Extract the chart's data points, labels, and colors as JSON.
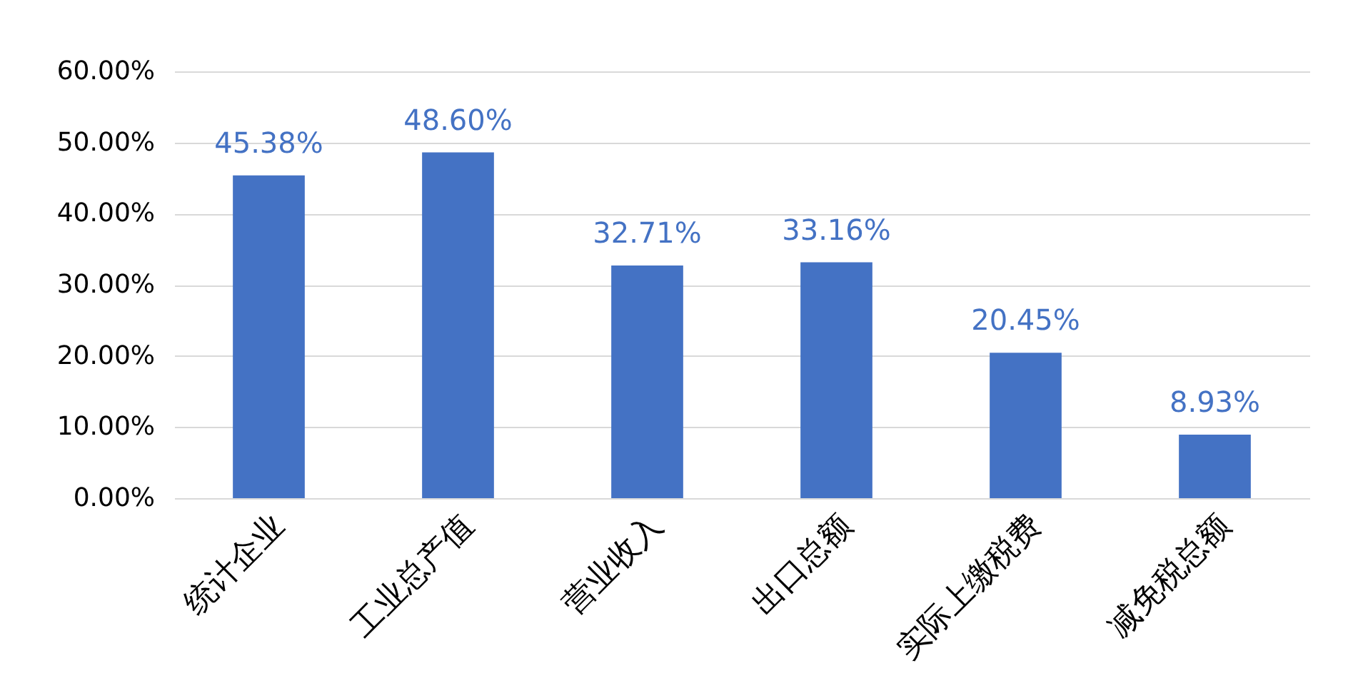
{
  "chart_data": {
    "type": "bar",
    "categories": [
      "统计企业",
      "工业总产值",
      "营业收入",
      "出口总额",
      "实际上缴税费",
      "减免税总额"
    ],
    "values": [
      45.38,
      48.6,
      32.71,
      33.16,
      20.45,
      8.93
    ],
    "value_labels": [
      "45.38%",
      "48.60%",
      "32.71%",
      "33.16%",
      "20.45%",
      "8.93%"
    ],
    "color": "#4472c4",
    "ylim": [
      0,
      60
    ],
    "yticks": [
      {
        "value": 0,
        "label": "0.00%"
      },
      {
        "value": 10,
        "label": "10.00%"
      },
      {
        "value": 20,
        "label": "20.00%"
      },
      {
        "value": 30,
        "label": "30.00%"
      },
      {
        "value": 40,
        "label": "40.00%"
      },
      {
        "value": 50,
        "label": "50.00%"
      },
      {
        "value": 60,
        "label": "60.00%"
      }
    ],
    "grid": "y"
  }
}
